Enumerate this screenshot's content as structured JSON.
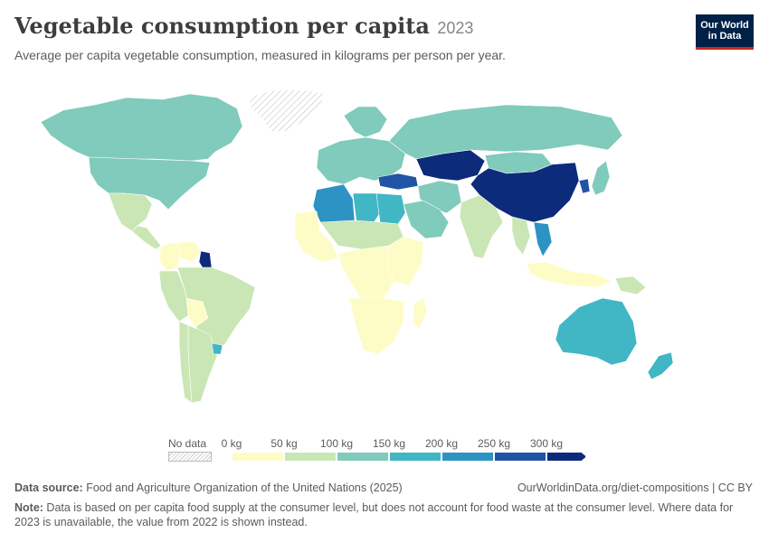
{
  "header": {
    "title": "Vegetable consumption per capita",
    "year": "2023",
    "subtitle": "Average per capita vegetable consumption, measured in kilograms per person per year.",
    "logo_line1": "Our World",
    "logo_line2": "in Data"
  },
  "legend": {
    "no_data_label": "No data",
    "bins": [
      {
        "label": "0 kg",
        "color": "#fefcc6"
      },
      {
        "label": "50 kg",
        "color": "#c9e6b4"
      },
      {
        "label": "100 kg",
        "color": "#80cbbb"
      },
      {
        "label": "150 kg",
        "color": "#41b6c4"
      },
      {
        "label": "200 kg",
        "color": "#2c93c4"
      },
      {
        "label": "250 kg",
        "color": "#2254a6"
      },
      {
        "label": "300 kg",
        "color": "#0c2b7a"
      }
    ]
  },
  "footer": {
    "source_prefix": "Data source:",
    "source_text": " Food and Agriculture Organization of the United Nations (2025)",
    "url": "OurWorldinData.org/diet-compositions | CC BY",
    "note_prefix": "Note:",
    "note_text": " Data is based on per capita food supply at the consumer level, but does not account for food waste at the consumer level. Where data for 2023 is unavailable, the value from 2022 is shown instead."
  },
  "regions": {
    "canada": "#80cbbb",
    "usa": "#80cbbb",
    "greenland": "no-data",
    "mexico": "#c9e6b4",
    "central_america": "#c9e6b4",
    "venezuela": "#fefcc6",
    "colombia": "#fefcc6",
    "guyana": "#0c2b7a",
    "brazil": "#c9e6b4",
    "peru": "#c9e6b4",
    "bolivia": "#fefcc6",
    "argentina": "#c9e6b4",
    "chile": "#c9e6b4",
    "uruguay": "#41b6c4",
    "russia": "#80cbbb",
    "kazakhstan": "#0c2b7a",
    "china": "#0c2b7a",
    "mongolia": "#80cbbb",
    "india": "#c9e6b4",
    "iran": "#80cbbb",
    "turkey": "#2254a6",
    "europe": "#80cbbb",
    "scandinavia": "#80cbbb",
    "algeria": "#2c93c4",
    "libya": "#41b6c4",
    "egypt": "#41b6c4",
    "saudi_arabia": "#80cbbb",
    "west_africa": "#fefcc6",
    "sahel": "#c9e6b4",
    "east_africa": "#fefcc6",
    "central_africa": "#fefcc6",
    "southern_africa": "#fefcc6",
    "australia": "#41b6c4",
    "new_zealand": "#41b6c4",
    "southeast_asia": "#c9e6b4",
    "vietnam": "#2c93c4",
    "indonesia": "#fefcc6",
    "japan": "#80cbbb",
    "korea": "#2254a6",
    "papua": "#c9e6b4"
  }
}
